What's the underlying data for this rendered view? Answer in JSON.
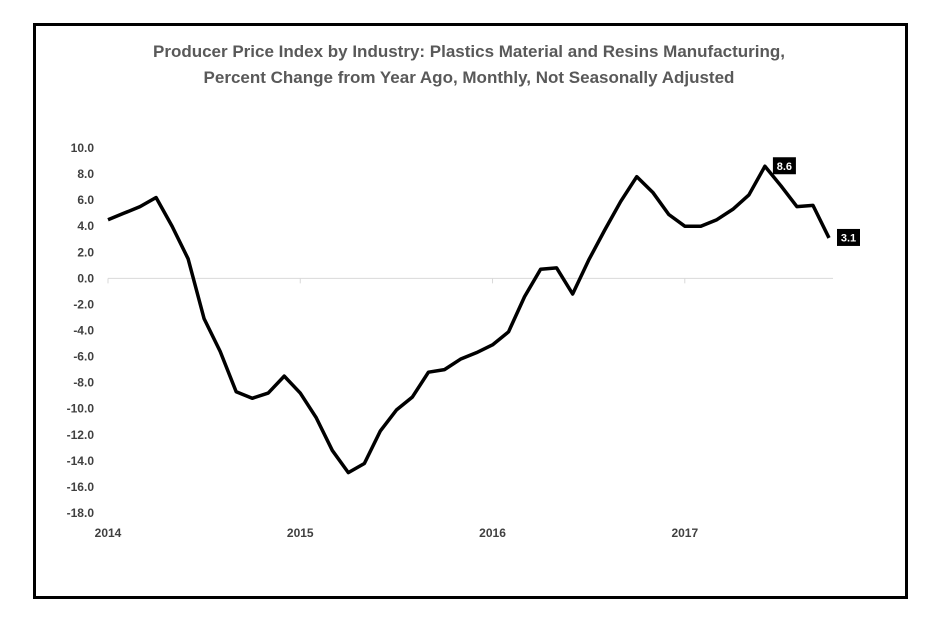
{
  "chart_data": {
    "type": "line",
    "title": [
      "Producer Price Index by Industry: Plastics Material and Resins Manufacturing,",
      "Percent Change from Year Ago, Monthly, Not Seasonally Adjusted"
    ],
    "xlabel": "",
    "ylabel": "",
    "ylim": [
      -18,
      10
    ],
    "yticks": [
      "10.0",
      "8.0",
      "6.0",
      "4.0",
      "2.0",
      "0.0",
      "-2.0",
      "-4.0",
      "-6.0",
      "-8.0",
      "-10.0",
      "-12.0",
      "-14.0",
      "-16.0",
      "-18.0"
    ],
    "xticks": [
      "2014",
      "2015",
      "2016",
      "2017"
    ],
    "x": [
      "2014-01",
      "2014-02",
      "2014-03",
      "2014-04",
      "2014-05",
      "2014-06",
      "2014-07",
      "2014-08",
      "2014-09",
      "2014-10",
      "2014-11",
      "2014-12",
      "2015-01",
      "2015-02",
      "2015-03",
      "2015-04",
      "2015-05",
      "2015-06",
      "2015-07",
      "2015-08",
      "2015-09",
      "2015-10",
      "2015-11",
      "2015-12",
      "2016-01",
      "2016-02",
      "2016-03",
      "2016-04",
      "2016-05",
      "2016-06",
      "2016-07",
      "2016-08",
      "2016-09",
      "2016-10",
      "2016-11",
      "2016-12",
      "2017-01",
      "2017-02",
      "2017-03",
      "2017-04",
      "2017-05",
      "2017-06",
      "2017-07",
      "2017-08",
      "2017-09",
      "2017-10"
    ],
    "series": [
      {
        "values": [
          4.5,
          5.0,
          5.5,
          6.2,
          4.0,
          1.5,
          -3.1,
          -5.6,
          -8.7,
          -9.2,
          -8.8,
          -7.5,
          -8.8,
          -10.7,
          -13.2,
          -14.9,
          -14.2,
          -11.7,
          -10.1,
          -9.1,
          -7.2,
          -7.0,
          -6.2,
          -5.7,
          -5.1,
          -4.1,
          -1.4,
          0.7,
          0.8,
          -1.2,
          1.4,
          3.7,
          5.9,
          7.8,
          6.6,
          4.9,
          4.0,
          4.0,
          4.5,
          5.3,
          6.4,
          8.6,
          7.1,
          5.5,
          5.6,
          3.1
        ]
      }
    ],
    "annotations": [
      {
        "x": "2017-06",
        "y": 8.6,
        "text": "8.6"
      },
      {
        "x": "2017-10",
        "y": 3.1,
        "text": "3.1"
      }
    ],
    "line_color": "#000000",
    "grid": false
  }
}
